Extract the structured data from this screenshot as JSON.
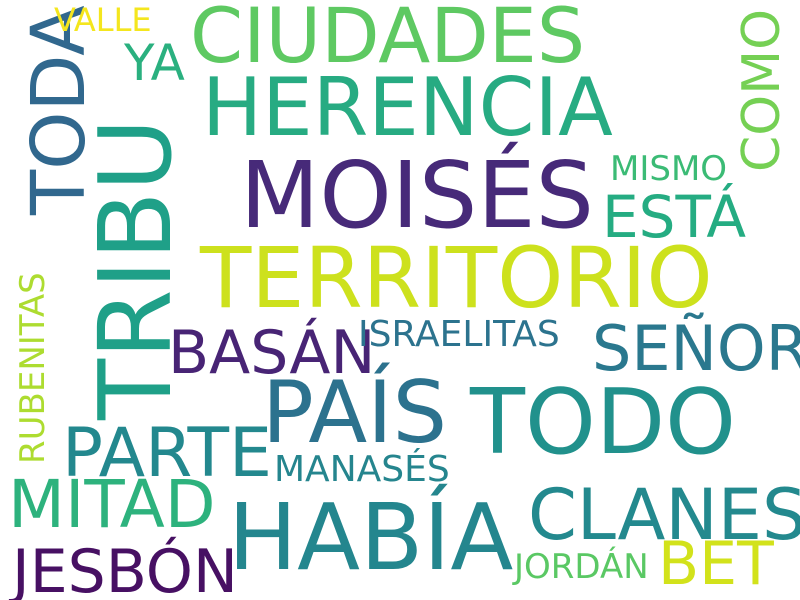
{
  "words": [
    {
      "text": "MOISÉS",
      "color": "#472a79"
    },
    {
      "text": "TERRITORIO",
      "color": "#cde11d"
    },
    {
      "text": "HERENCIA",
      "color": "#27ab82"
    },
    {
      "text": "CIUDADES",
      "color": "#5ec962"
    },
    {
      "text": "TRIBU",
      "color": "#1fa088"
    },
    {
      "text": "TODO",
      "color": "#21918c"
    },
    {
      "text": "PAÍS",
      "color": "#2c728e"
    },
    {
      "text": "HABÍA",
      "color": "#24868e"
    },
    {
      "text": "TODA",
      "color": "#31688e"
    },
    {
      "text": "CLANES",
      "color": "#23898e"
    },
    {
      "text": "SEÑOR",
      "color": "#2a788e"
    },
    {
      "text": "BASÁN",
      "color": "#482475"
    },
    {
      "text": "PARTE",
      "color": "#23888e"
    },
    {
      "text": "MITAD",
      "color": "#2db27d"
    },
    {
      "text": "JESBÓN",
      "color": "#471063"
    },
    {
      "text": "ESTÁ",
      "color": "#25ac82"
    },
    {
      "text": "COMO",
      "color": "#75d054"
    },
    {
      "text": "BET",
      "color": "#d2e21b"
    },
    {
      "text": "YA",
      "color": "#2ab07f"
    },
    {
      "text": "ISRAELITAS",
      "color": "#2c738e"
    },
    {
      "text": "MANASÉS",
      "color": "#25858e"
    },
    {
      "text": "MISMO",
      "color": "#3bbb75"
    },
    {
      "text": "JORDÁN",
      "color": "#5ac864"
    },
    {
      "text": "RUBENITAS",
      "color": "#addc30"
    },
    {
      "text": "VALLE",
      "color": "#f4e61e"
    }
  ]
}
